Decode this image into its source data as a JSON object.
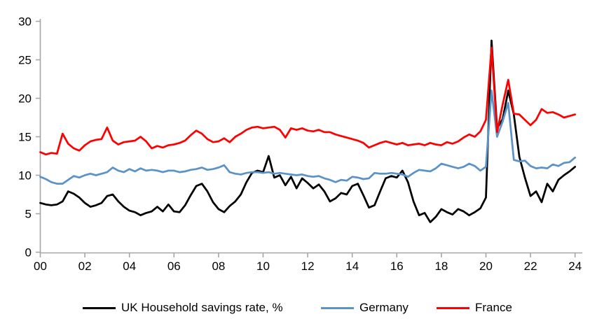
{
  "chart_data": {
    "type": "line",
    "title": "",
    "frequency": "quarterly",
    "x_start_year": 2000,
    "x_step_years": 0.25,
    "x_axis": {
      "tick_years": [
        2000,
        2002,
        2004,
        2006,
        2008,
        2010,
        2012,
        2014,
        2016,
        2018,
        2020,
        2022,
        2024
      ],
      "tick_labels": [
        "00",
        "02",
        "04",
        "06",
        "08",
        "10",
        "12",
        "14",
        "16",
        "18",
        "20",
        "22",
        "24"
      ]
    },
    "y_axis": {
      "min": 0,
      "max": 30,
      "ticks": [
        0,
        5,
        10,
        15,
        20,
        25,
        30
      ],
      "tick_labels": [
        "0",
        "5",
        "10",
        "15",
        "20",
        "25",
        "30"
      ]
    },
    "grid": false,
    "legend_position": "bottom",
    "series": [
      {
        "name": "UK Household savings rate, %",
        "color": "#000000",
        "values": [
          6.4,
          6.2,
          6.1,
          6.2,
          6.6,
          7.9,
          7.6,
          7.1,
          6.4,
          5.9,
          6.1,
          6.4,
          7.3,
          7.5,
          6.6,
          5.9,
          5.4,
          5.2,
          4.8,
          5.1,
          5.3,
          5.9,
          5.3,
          6.2,
          5.3,
          5.2,
          6.1,
          7.4,
          8.6,
          8.9,
          7.9,
          6.5,
          5.6,
          5.2,
          6.0,
          6.6,
          7.5,
          9.1,
          10.3,
          10.6,
          10.4,
          12.5,
          9.7,
          10.0,
          8.7,
          9.8,
          8.3,
          9.6,
          9.0,
          8.3,
          8.8,
          7.9,
          6.6,
          7.0,
          7.7,
          7.5,
          8.6,
          8.9,
          7.4,
          5.8,
          6.1,
          7.9,
          9.6,
          9.9,
          9.7,
          10.6,
          9.1,
          6.6,
          4.8,
          5.1,
          3.9,
          4.6,
          5.6,
          5.2,
          4.9,
          5.6,
          5.3,
          4.8,
          5.2,
          5.7,
          7.1,
          27.5,
          16.1,
          17.3,
          21.0,
          17.9,
          12.4,
          9.7,
          7.3,
          7.9,
          6.5,
          8.9,
          7.9,
          9.4,
          10.0,
          10.5,
          11.1
        ]
      },
      {
        "name": "Germany",
        "color": "#5B93C9",
        "values": [
          9.8,
          9.5,
          9.1,
          8.9,
          8.9,
          9.4,
          9.9,
          9.7,
          10.0,
          10.2,
          10.0,
          10.2,
          10.4,
          11.0,
          10.6,
          10.4,
          10.8,
          10.5,
          10.9,
          10.6,
          10.7,
          10.6,
          10.4,
          10.6,
          10.6,
          10.4,
          10.5,
          10.7,
          10.8,
          11.0,
          10.7,
          10.8,
          11.0,
          11.3,
          10.4,
          10.2,
          10.1,
          10.3,
          10.4,
          10.4,
          10.3,
          10.4,
          10.2,
          10.3,
          10.2,
          10.1,
          10.0,
          10.1,
          9.9,
          9.8,
          9.9,
          9.6,
          9.4,
          9.1,
          9.4,
          9.3,
          9.8,
          9.7,
          9.5,
          9.6,
          10.3,
          10.2,
          10.2,
          10.3,
          10.2,
          10.1,
          9.8,
          10.3,
          10.7,
          10.6,
          10.5,
          10.9,
          11.5,
          11.3,
          11.1,
          10.9,
          11.1,
          11.5,
          11.2,
          10.6,
          11.1,
          21.0,
          15.0,
          17.0,
          19.4,
          12.0,
          11.8,
          11.9,
          11.2,
          10.9,
          11.0,
          10.9,
          11.4,
          11.2,
          11.6,
          11.7,
          12.3
        ]
      },
      {
        "name": "France",
        "color": "#FF0000",
        "values": [
          13.0,
          12.7,
          12.9,
          12.8,
          15.4,
          14.1,
          13.5,
          13.2,
          13.9,
          14.4,
          14.6,
          14.7,
          16.2,
          14.5,
          14.0,
          14.3,
          14.4,
          14.5,
          15.0,
          14.4,
          13.5,
          13.8,
          13.6,
          13.9,
          14.0,
          14.2,
          14.5,
          15.2,
          15.8,
          15.4,
          14.7,
          14.3,
          14.4,
          14.8,
          14.3,
          15.0,
          15.4,
          15.9,
          16.2,
          16.3,
          16.1,
          16.2,
          16.3,
          15.9,
          14.9,
          16.1,
          15.9,
          16.1,
          15.8,
          15.7,
          15.9,
          15.6,
          15.6,
          15.3,
          15.1,
          14.9,
          14.7,
          14.5,
          14.2,
          13.6,
          13.9,
          14.2,
          14.4,
          14.2,
          14.0,
          14.2,
          13.9,
          14.0,
          14.1,
          13.9,
          14.2,
          14.0,
          13.9,
          14.3,
          14.1,
          14.4,
          14.9,
          15.3,
          15.0,
          15.7,
          17.2,
          26.6,
          15.6,
          19.2,
          22.4,
          18.0,
          17.9,
          17.2,
          16.5,
          17.2,
          18.6,
          18.1,
          18.2,
          17.9,
          17.5,
          17.7,
          17.9
        ]
      }
    ]
  },
  "colors": {
    "axis": "#A6A6A6",
    "tick_text": "#000000",
    "background": "#FFFFFF"
  }
}
